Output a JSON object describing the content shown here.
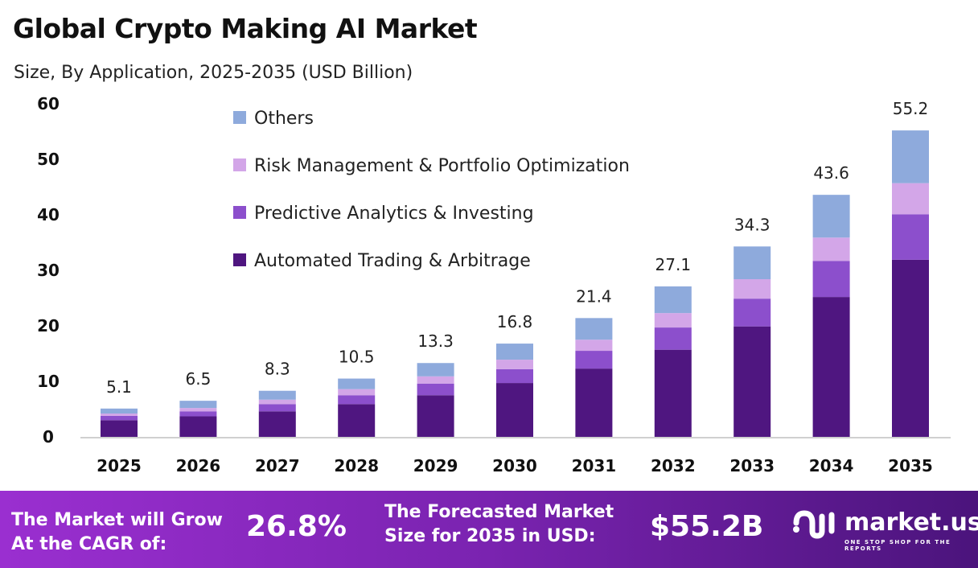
{
  "title": "Global Crypto Making AI Market",
  "subtitle": "Size, By Application, 2025-2035 (USD Billion)",
  "chart_data": {
    "type": "bar",
    "stacked": true,
    "categories": [
      "2025",
      "2026",
      "2027",
      "2028",
      "2029",
      "2030",
      "2031",
      "2032",
      "2033",
      "2034",
      "2035"
    ],
    "series": [
      {
        "name": "Automated Trading & Arbitrage",
        "color": "#4f1680",
        "values": [
          3.0,
          3.7,
          4.6,
          5.9,
          7.5,
          9.7,
          12.3,
          15.7,
          19.9,
          25.2,
          31.9
        ]
      },
      {
        "name": "Predictive Analytics & Investing",
        "color": "#8c4fcc",
        "values": [
          0.8,
          0.9,
          1.3,
          1.6,
          2.1,
          2.5,
          3.2,
          4.0,
          5.0,
          6.5,
          8.2
        ]
      },
      {
        "name": "Risk Management & Portfolio Optimization",
        "color": "#d3a6e8",
        "values": [
          0.4,
          0.6,
          0.8,
          1.1,
          1.3,
          1.7,
          2.0,
          2.6,
          3.5,
          4.2,
          5.6
        ]
      },
      {
        "name": "Others",
        "color": "#8eaadc",
        "values": [
          0.9,
          1.3,
          1.6,
          1.9,
          2.4,
          2.9,
          3.9,
          4.8,
          5.9,
          7.7,
          9.5
        ]
      }
    ],
    "totals": [
      "5.1",
      "6.5",
      "8.3",
      "10.5",
      "13.3",
      "16.8",
      "21.4",
      "27.1",
      "34.3",
      "43.6",
      "55.2"
    ],
    "ylim": [
      0,
      60
    ],
    "yticks": [
      "0",
      "10",
      "20",
      "30",
      "40",
      "50",
      "60"
    ],
    "grid": false,
    "legend_position": "top-left",
    "legend_order": [
      "Others",
      "Risk Management & Portfolio Optimization",
      "Predictive Analytics & Investing",
      "Automated Trading & Arbitrage"
    ]
  },
  "footer": {
    "cagr_label_1": "The Market will Grow",
    "cagr_label_2": "At the CAGR of:",
    "cagr_value": "26.8%",
    "forecast_label_1": "The Forecasted Market",
    "forecast_label_2": "Size for 2035 in USD:",
    "forecast_value": "$55.2B",
    "logo_name": "market.us",
    "logo_tagline": "ONE STOP SHOP FOR THE REPORTS"
  }
}
